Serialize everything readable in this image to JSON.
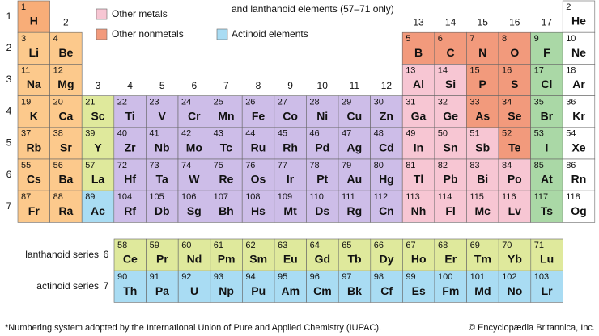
{
  "legend": [
    {
      "label": "and lanthanoid elements (57–71 only)",
      "color": null
    },
    {
      "label": "Other metals",
      "color": "#f7c6d3"
    },
    {
      "label": "Other nonmetals",
      "color": "#f29a7c"
    },
    {
      "label": "Actinoid elements",
      "color": "#a9dcf3"
    }
  ],
  "period_labels": [
    1,
    2,
    3,
    4,
    5,
    6,
    7
  ],
  "group_labels": [
    null,
    2,
    3,
    4,
    5,
    6,
    7,
    8,
    9,
    10,
    11,
    12,
    13,
    14,
    15,
    16,
    17,
    null
  ],
  "periods": [
    [
      {
        "number": 1,
        "symbol": "H",
        "color": "#f8ad78"
      },
      null,
      null,
      null,
      null,
      null,
      null,
      null,
      null,
      null,
      null,
      null,
      null,
      null,
      null,
      null,
      null,
      {
        "number": 2,
        "symbol": "He",
        "color": "#ffffff"
      }
    ],
    [
      {
        "number": 3,
        "symbol": "Li",
        "color": "#fcc98c"
      },
      {
        "number": 4,
        "symbol": "Be",
        "color": "#fcc98c"
      },
      null,
      null,
      null,
      null,
      null,
      null,
      null,
      null,
      null,
      null,
      {
        "number": 5,
        "symbol": "B",
        "color": "#f29a7c"
      },
      {
        "number": 6,
        "symbol": "C",
        "color": "#f29a7c"
      },
      {
        "number": 7,
        "symbol": "N",
        "color": "#f29a7c"
      },
      {
        "number": 8,
        "symbol": "O",
        "color": "#f29a7c"
      },
      {
        "number": 9,
        "symbol": "F",
        "color": "#aad8a6"
      },
      {
        "number": 10,
        "symbol": "Ne",
        "color": "#ffffff"
      }
    ],
    [
      {
        "number": 11,
        "symbol": "Na",
        "color": "#fcc98c"
      },
      {
        "number": 12,
        "symbol": "Mg",
        "color": "#fcc98c"
      },
      null,
      null,
      null,
      null,
      null,
      null,
      null,
      null,
      null,
      null,
      {
        "number": 13,
        "symbol": "Al",
        "color": "#f7c6d3"
      },
      {
        "number": 14,
        "symbol": "Si",
        "color": "#f7c6d3"
      },
      {
        "number": 15,
        "symbol": "P",
        "color": "#f29a7c"
      },
      {
        "number": 16,
        "symbol": "S",
        "color": "#f29a7c"
      },
      {
        "number": 17,
        "symbol": "Cl",
        "color": "#aad8a6"
      },
      {
        "number": 18,
        "symbol": "Ar",
        "color": "#ffffff"
      }
    ],
    [
      {
        "number": 19,
        "symbol": "K",
        "color": "#fcc98c"
      },
      {
        "number": 20,
        "symbol": "Ca",
        "color": "#fcc98c"
      },
      {
        "number": 21,
        "symbol": "Sc",
        "color": "#dfe99c"
      },
      {
        "number": 22,
        "symbol": "Ti",
        "color": "#cdbde8"
      },
      {
        "number": 23,
        "symbol": "V",
        "color": "#cdbde8"
      },
      {
        "number": 24,
        "symbol": "Cr",
        "color": "#cdbde8"
      },
      {
        "number": 25,
        "symbol": "Mn",
        "color": "#cdbde8"
      },
      {
        "number": 26,
        "symbol": "Fe",
        "color": "#cdbde8"
      },
      {
        "number": 27,
        "symbol": "Co",
        "color": "#cdbde8"
      },
      {
        "number": 28,
        "symbol": "Ni",
        "color": "#cdbde8"
      },
      {
        "number": 29,
        "symbol": "Cu",
        "color": "#cdbde8"
      },
      {
        "number": 30,
        "symbol": "Zn",
        "color": "#cdbde8"
      },
      {
        "number": 31,
        "symbol": "Ga",
        "color": "#f7c6d3"
      },
      {
        "number": 32,
        "symbol": "Ge",
        "color": "#f7c6d3"
      },
      {
        "number": 33,
        "symbol": "As",
        "color": "#f29a7c"
      },
      {
        "number": 34,
        "symbol": "Se",
        "color": "#f29a7c"
      },
      {
        "number": 35,
        "symbol": "Br",
        "color": "#aad8a6"
      },
      {
        "number": 36,
        "symbol": "Kr",
        "color": "#ffffff"
      }
    ],
    [
      {
        "number": 37,
        "symbol": "Rb",
        "color": "#fcc98c"
      },
      {
        "number": 38,
        "symbol": "Sr",
        "color": "#fcc98c"
      },
      {
        "number": 39,
        "symbol": "Y",
        "color": "#dfe99c"
      },
      {
        "number": 40,
        "symbol": "Zr",
        "color": "#cdbde8"
      },
      {
        "number": 41,
        "symbol": "Nb",
        "color": "#cdbde8"
      },
      {
        "number": 42,
        "symbol": "Mo",
        "color": "#cdbde8"
      },
      {
        "number": 43,
        "symbol": "Tc",
        "color": "#cdbde8"
      },
      {
        "number": 44,
        "symbol": "Ru",
        "color": "#cdbde8"
      },
      {
        "number": 45,
        "symbol": "Rh",
        "color": "#cdbde8"
      },
      {
        "number": 46,
        "symbol": "Pd",
        "color": "#cdbde8"
      },
      {
        "number": 47,
        "symbol": "Ag",
        "color": "#cdbde8"
      },
      {
        "number": 48,
        "symbol": "Cd",
        "color": "#cdbde8"
      },
      {
        "number": 49,
        "symbol": "In",
        "color": "#f7c6d3"
      },
      {
        "number": 50,
        "symbol": "Sn",
        "color": "#f7c6d3"
      },
      {
        "number": 51,
        "symbol": "Sb",
        "color": "#f7c6d3"
      },
      {
        "number": 52,
        "symbol": "Te",
        "color": "#f29a7c"
      },
      {
        "number": 53,
        "symbol": "I",
        "color": "#aad8a6"
      },
      {
        "number": 54,
        "symbol": "Xe",
        "color": "#ffffff"
      }
    ],
    [
      {
        "number": 55,
        "symbol": "Cs",
        "color": "#fcc98c"
      },
      {
        "number": 56,
        "symbol": "Ba",
        "color": "#fcc98c"
      },
      {
        "number": 57,
        "symbol": "La",
        "color": "#dfe99c"
      },
      {
        "number": 72,
        "symbol": "Hf",
        "color": "#cdbde8"
      },
      {
        "number": 73,
        "symbol": "Ta",
        "color": "#cdbde8"
      },
      {
        "number": 74,
        "symbol": "W",
        "color": "#cdbde8"
      },
      {
        "number": 75,
        "symbol": "Re",
        "color": "#cdbde8"
      },
      {
        "number": 76,
        "symbol": "Os",
        "color": "#cdbde8"
      },
      {
        "number": 77,
        "symbol": "Ir",
        "color": "#cdbde8"
      },
      {
        "number": 78,
        "symbol": "Pt",
        "color": "#cdbde8"
      },
      {
        "number": 79,
        "symbol": "Au",
        "color": "#cdbde8"
      },
      {
        "number": 80,
        "symbol": "Hg",
        "color": "#cdbde8"
      },
      {
        "number": 81,
        "symbol": "Tl",
        "color": "#f7c6d3"
      },
      {
        "number": 82,
        "symbol": "Pb",
        "color": "#f7c6d3"
      },
      {
        "number": 83,
        "symbol": "Bi",
        "color": "#f7c6d3"
      },
      {
        "number": 84,
        "symbol": "Po",
        "color": "#f7c6d3"
      },
      {
        "number": 85,
        "symbol": "At",
        "color": "#aad8a6"
      },
      {
        "number": 86,
        "symbol": "Rn",
        "color": "#ffffff"
      }
    ],
    [
      {
        "number": 87,
        "symbol": "Fr",
        "color": "#fcc98c"
      },
      {
        "number": 88,
        "symbol": "Ra",
        "color": "#fcc98c"
      },
      {
        "number": 89,
        "symbol": "Ac",
        "color": "#a9dcf3"
      },
      {
        "number": 104,
        "symbol": "Rf",
        "color": "#cdbde8"
      },
      {
        "number": 105,
        "symbol": "Db",
        "color": "#cdbde8"
      },
      {
        "number": 106,
        "symbol": "Sg",
        "color": "#cdbde8"
      },
      {
        "number": 107,
        "symbol": "Bh",
        "color": "#cdbde8"
      },
      {
        "number": 108,
        "symbol": "Hs",
        "color": "#cdbde8"
      },
      {
        "number": 109,
        "symbol": "Mt",
        "color": "#cdbde8"
      },
      {
        "number": 110,
        "symbol": "Ds",
        "color": "#cdbde8"
      },
      {
        "number": 111,
        "symbol": "Rg",
        "color": "#cdbde8"
      },
      {
        "number": 112,
        "symbol": "Cn",
        "color": "#cdbde8"
      },
      {
        "number": 113,
        "symbol": "Nh",
        "color": "#f7c6d3"
      },
      {
        "number": 114,
        "symbol": "Fl",
        "color": "#f7c6d3"
      },
      {
        "number": 115,
        "symbol": "Mc",
        "color": "#f7c6d3"
      },
      {
        "number": 116,
        "symbol": "Lv",
        "color": "#f7c6d3"
      },
      {
        "number": 117,
        "symbol": "Ts",
        "color": "#aad8a6"
      },
      {
        "number": 118,
        "symbol": "Og",
        "color": "#ffffff"
      }
    ]
  ],
  "series": [
    {
      "label": "lanthanoid series",
      "period": 6,
      "color": "#dfe99c",
      "elements": [
        {
          "number": 58,
          "symbol": "Ce"
        },
        {
          "number": 59,
          "symbol": "Pr"
        },
        {
          "number": 60,
          "symbol": "Nd"
        },
        {
          "number": 61,
          "symbol": "Pm"
        },
        {
          "number": 62,
          "symbol": "Sm"
        },
        {
          "number": 63,
          "symbol": "Eu"
        },
        {
          "number": 64,
          "symbol": "Gd"
        },
        {
          "number": 65,
          "symbol": "Tb"
        },
        {
          "number": 66,
          "symbol": "Dy"
        },
        {
          "number": 67,
          "symbol": "Ho"
        },
        {
          "number": 68,
          "symbol": "Er"
        },
        {
          "number": 69,
          "symbol": "Tm"
        },
        {
          "number": 70,
          "symbol": "Yb"
        },
        {
          "number": 71,
          "symbol": "Lu"
        }
      ]
    },
    {
      "label": "actinoid series",
      "period": 7,
      "color": "#a9dcf3",
      "elements": [
        {
          "number": 90,
          "symbol": "Th"
        },
        {
          "number": 91,
          "symbol": "Pa"
        },
        {
          "number": 92,
          "symbol": "U"
        },
        {
          "number": 93,
          "symbol": "Np"
        },
        {
          "number": 94,
          "symbol": "Pu"
        },
        {
          "number": 95,
          "symbol": "Am"
        },
        {
          "number": 96,
          "symbol": "Cm"
        },
        {
          "number": 97,
          "symbol": "Bk"
        },
        {
          "number": 98,
          "symbol": "Cf"
        },
        {
          "number": 99,
          "symbol": "Es"
        },
        {
          "number": 100,
          "symbol": "Fm"
        },
        {
          "number": 101,
          "symbol": "Md"
        },
        {
          "number": 102,
          "symbol": "No"
        },
        {
          "number": 103,
          "symbol": "Lr"
        }
      ]
    }
  ],
  "footnote": "*Numbering system adopted by the International Union of Pure and Applied Chemistry (IUPAC).",
  "credit": "© Encyclopædia Britannica, Inc."
}
